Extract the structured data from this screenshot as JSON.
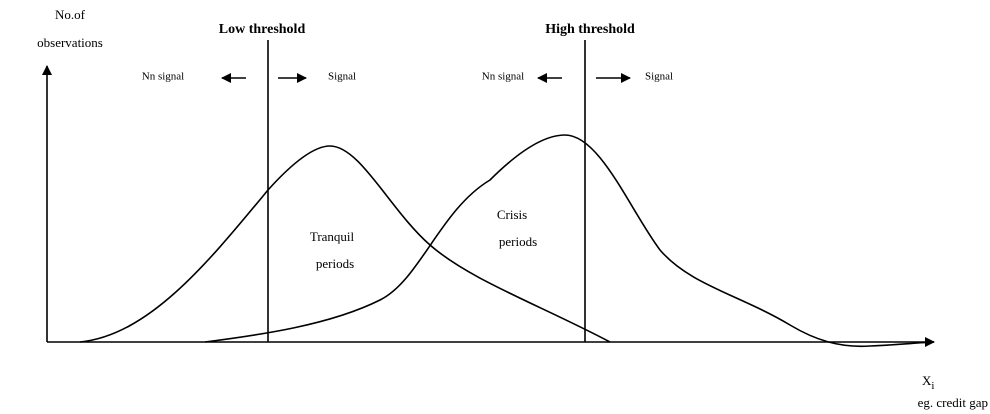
{
  "axes": {
    "y_label": [
      "No.of",
      "observations"
    ],
    "x_label": {
      "main": "X",
      "subscript": "i",
      "note": "eg. credit gap"
    }
  },
  "thresholds": [
    {
      "title": "Low threshold",
      "left": "Nn signal",
      "right": "Signal"
    },
    {
      "title": "High threshold",
      "left": "Nn signal",
      "right": "Signal"
    }
  ],
  "curves": [
    {
      "label": [
        "Tranquil",
        "periods"
      ]
    },
    {
      "label": [
        "Crisis",
        "periods"
      ]
    }
  ]
}
